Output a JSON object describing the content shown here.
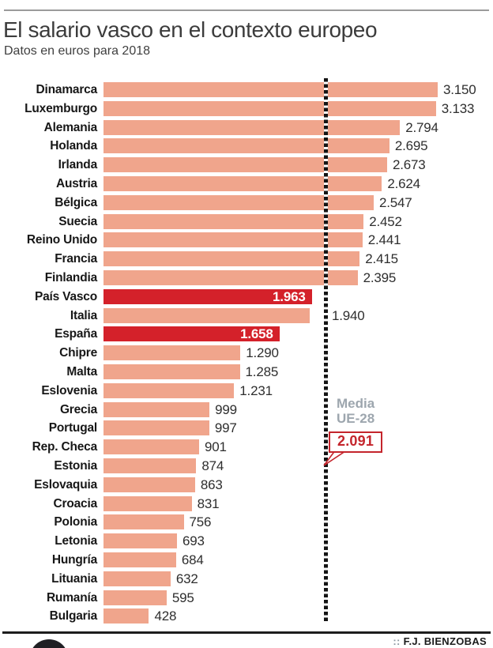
{
  "header": {
    "title": "El salario vasco en el contexto europeo",
    "subtitle": "Datos en euros para 2018"
  },
  "footer": {
    "credit_prefix": "::",
    "credit": "F.J. BIENZOBAS"
  },
  "annotation": {
    "media_label": "Media\nUE-28",
    "media_value": "2.091"
  },
  "colors": {
    "bar": "#f0a58c",
    "highlight": "#d4212a",
    "callout_red": "#c4252c",
    "media_gray": "#9da6ae"
  },
  "chart_data": {
    "type": "bar",
    "orientation": "horizontal",
    "title": "El salario vasco en el contexto europeo",
    "subtitle": "Datos en euros para 2018",
    "unit": "euros",
    "year": "2018",
    "xlim": [
      0,
      3150
    ],
    "grid": false,
    "legend": false,
    "categories": [
      "Dinamarca",
      "Luxemburgo",
      "Alemania",
      "Holanda",
      "Irlanda",
      "Austria",
      "Bélgica",
      "Suecia",
      "Reino Unido",
      "Francia",
      "Finlandia",
      "País Vasco",
      "Italia",
      "España",
      "Chipre",
      "Malta",
      "Eslovenia",
      "Grecia",
      "Portugal",
      "Rep. Checa",
      "Estonia",
      "Eslovaquia",
      "Croacia",
      "Polonia",
      "Letonia",
      "Hungría",
      "Lituania",
      "Rumanía",
      "Bulgaria"
    ],
    "values": [
      3150,
      3133,
      2794,
      2695,
      2673,
      2624,
      2547,
      2452,
      2441,
      2415,
      2395,
      1963,
      1940,
      1658,
      1290,
      1285,
      1231,
      999,
      997,
      901,
      874,
      863,
      831,
      756,
      693,
      684,
      632,
      595,
      428
    ],
    "display_values": [
      "3.150",
      "3.133",
      "2.794",
      "2.695",
      "2.673",
      "2.624",
      "2.547",
      "2.452",
      "2.441",
      "2.415",
      "2.395",
      "1.963",
      "1.940",
      "1.658",
      "1.290",
      "1.285",
      "1.231",
      "999",
      "997",
      "901",
      "874",
      "863",
      "831",
      "756",
      "693",
      "684",
      "632",
      "595",
      "428"
    ],
    "highlighted_categories": [
      "País Vasco",
      "España"
    ],
    "reference_line": {
      "label": "Media UE-28",
      "value": 2091,
      "display": "2.091"
    }
  }
}
